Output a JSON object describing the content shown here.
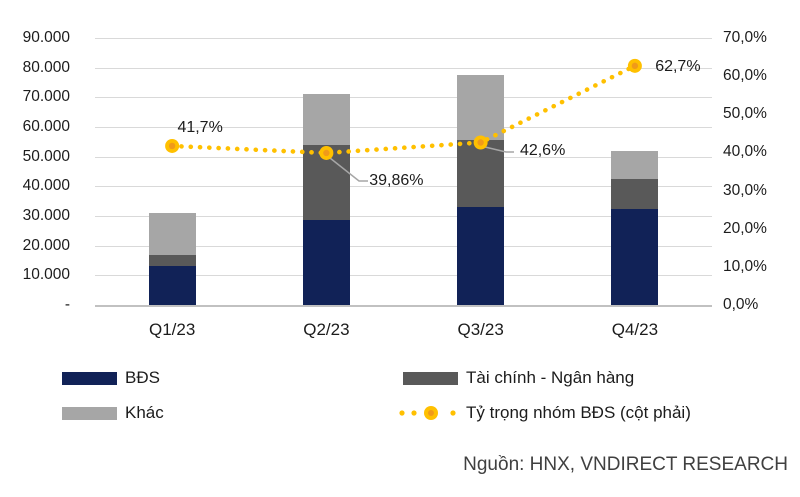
{
  "chart_data": {
    "type": "bar",
    "subtype": "stacked-bar-with-line-overlay",
    "title": "",
    "categories": [
      "Q1/23",
      "Q2/23",
      "Q3/23",
      "Q4/23"
    ],
    "series": [
      {
        "name": "BĐS",
        "type": "bar",
        "stacked": true,
        "color": "#112257",
        "values": [
          13000,
          28500,
          33000,
          32500
        ]
      },
      {
        "name": "Tài chính - Ngân hàng",
        "type": "bar",
        "stacked": true,
        "color": "#595959",
        "values": [
          4000,
          25500,
          22500,
          10000
        ]
      },
      {
        "name": "Khác",
        "type": "bar",
        "stacked": true,
        "color": "#A6A6A6",
        "values": [
          14000,
          17000,
          22000,
          9500
        ]
      },
      {
        "name": "Tỷ trọng nhóm BĐS (cột phải)",
        "type": "line",
        "axis": "right",
        "color": "#FFC000",
        "marker_inner_color": "#F09A1A",
        "values": [
          41.7,
          39.86,
          42.6,
          62.7
        ],
        "point_labels": [
          "41,7%",
          "39,86%",
          "42,6%",
          "62,7%"
        ]
      }
    ],
    "stack_totals": [
      31000,
      71000,
      77500,
      52000
    ],
    "left_axis": {
      "min": 0,
      "max": 90000,
      "step": 10000,
      "tick_labels": [
        "90.000",
        "80.000",
        "70.000",
        "60.000",
        "50.000",
        "40.000",
        "30.000",
        "20.000",
        "10.000",
        "-"
      ]
    },
    "right_axis": {
      "min": 0,
      "max": 70,
      "step": 10,
      "tick_labels": [
        "70,0%",
        "60,0%",
        "50,0%",
        "40,0%",
        "30,0%",
        "20,0%",
        "10,0%",
        "0,0%"
      ]
    },
    "grid": true,
    "legend_position": "bottom"
  },
  "legend": {
    "items": [
      {
        "label": "BĐS",
        "series_index": 0
      },
      {
        "label": "Khác",
        "series_index": 2
      },
      {
        "label": "Tài chính - Ngân hàng",
        "series_index": 1
      },
      {
        "label": "Tỷ trọng nhóm BĐS (cột phải)",
        "series_index": 3
      }
    ]
  },
  "source": {
    "text": "Nguồn: HNX, VNDIRECT RESEARCH"
  },
  "colors": {
    "gridline": "#D9D9D9",
    "axis_line": "#C1C1C1",
    "leader_line": "#A6A6A6",
    "text": "#1C1C1C",
    "source_text": "#404040"
  }
}
